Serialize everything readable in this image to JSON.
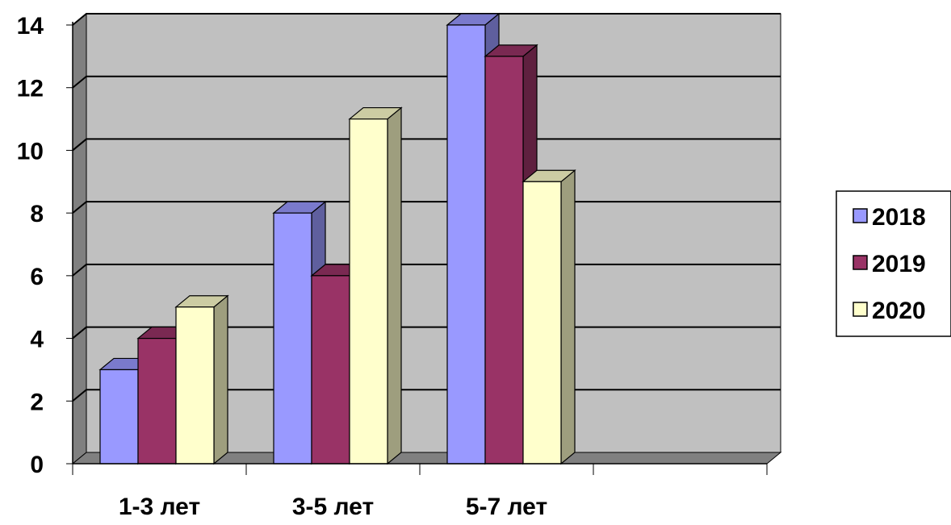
{
  "chart_data": {
    "type": "bar",
    "categories": [
      "1-3 лет",
      "3-5 лет",
      "5-7 лет",
      ""
    ],
    "series": [
      {
        "name": "2018",
        "values": [
          3,
          8,
          14,
          null
        ]
      },
      {
        "name": "2019",
        "values": [
          4,
          6,
          13,
          null
        ]
      },
      {
        "name": "2020",
        "values": [
          5,
          11,
          9,
          null
        ]
      }
    ],
    "ylim": [
      0,
      14
    ],
    "yticks": [
      "0",
      "2",
      "4",
      "6",
      "8",
      "10",
      "12",
      "14"
    ],
    "grid": true,
    "legend_position": "right",
    "style": "3d-clustered-column",
    "colors": {
      "2018": "#9999ff",
      "2019": "#993366",
      "2020": "#ffffcc",
      "plot_background": "#c0c0c0",
      "wall_side": "#808080"
    }
  }
}
